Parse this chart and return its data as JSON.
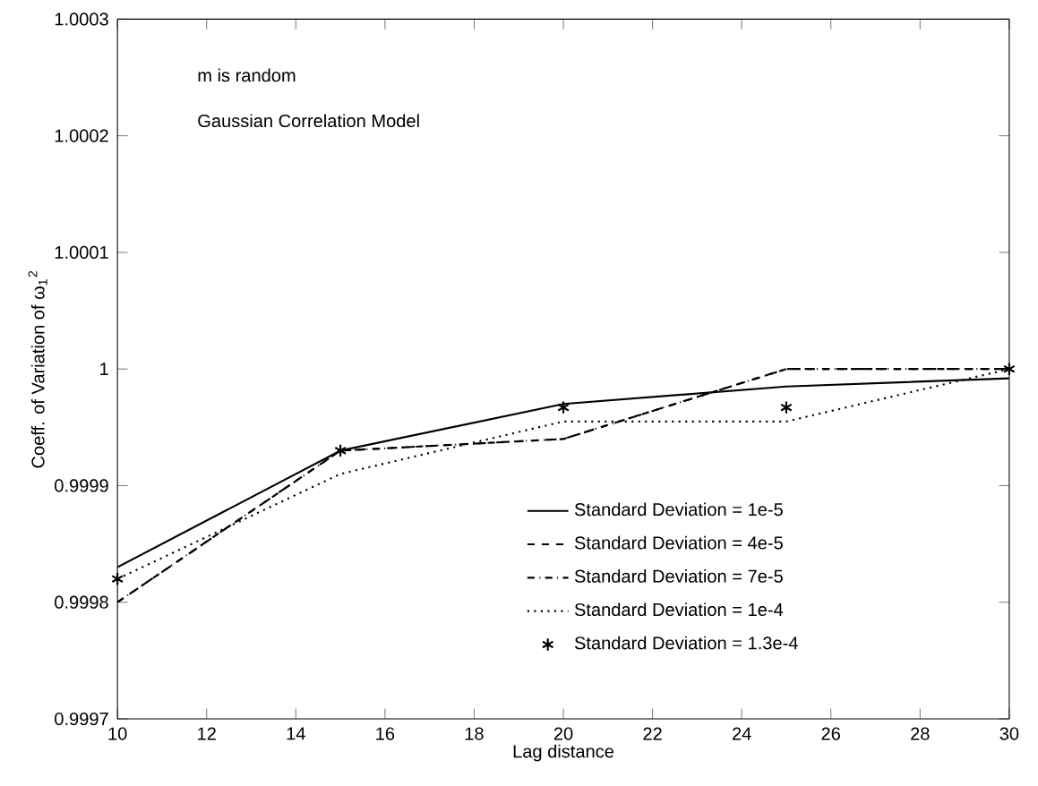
{
  "chart_data": {
    "type": "line",
    "xlabel": "Lag distance",
    "ylabel": "Coeff. of Variation of ω$_{1}$$^{2}$",
    "x": [
      10,
      15,
      20,
      25,
      30
    ],
    "xlim": [
      10,
      30
    ],
    "xticks": [
      10,
      12,
      14,
      16,
      18,
      20,
      22,
      24,
      26,
      28,
      30
    ],
    "ylim": [
      0.9997,
      1.0003
    ],
    "yticks": [
      0.9997,
      0.9998,
      0.9999,
      1,
      1.0001,
      1.0002,
      1.0003
    ],
    "legend": "bottom right",
    "series": [
      {
        "name": "Standard Deviation = 1e-5",
        "color": "#000000",
        "line_style": "solid",
        "values": [
          0.99983,
          0.99993,
          0.99997,
          0.999985,
          0.999992
        ]
      },
      {
        "name": "Standard Deviation = 4e-5",
        "color": "#000000",
        "line_style": "dashed",
        "values": [
          0.9998,
          0.99993,
          0.99994,
          1.0,
          1.0
        ]
      },
      {
        "name": "Standard Deviation = 7e-5",
        "color": "#000000",
        "line_style": "dashdot",
        "values": [
          0.9998,
          0.99993,
          0.99994,
          1.0,
          1.0
        ]
      },
      {
        "name": "Standard Deviation = 1e-4",
        "color": "#000000",
        "line_style": "dotted",
        "values": [
          0.99982,
          0.99991,
          0.999955,
          0.999955,
          1.0
        ]
      },
      {
        "name": "Standard Deviation = 1.3e-4",
        "type": "scatter",
        "color": "#000000",
        "marker": "cross",
        "values": [
          0.99982,
          0.99993,
          0.999967,
          0.999967,
          1.0
        ]
      }
    ],
    "annotations": [
      "m is random",
      "Gaussian Correlation Model"
    ]
  }
}
